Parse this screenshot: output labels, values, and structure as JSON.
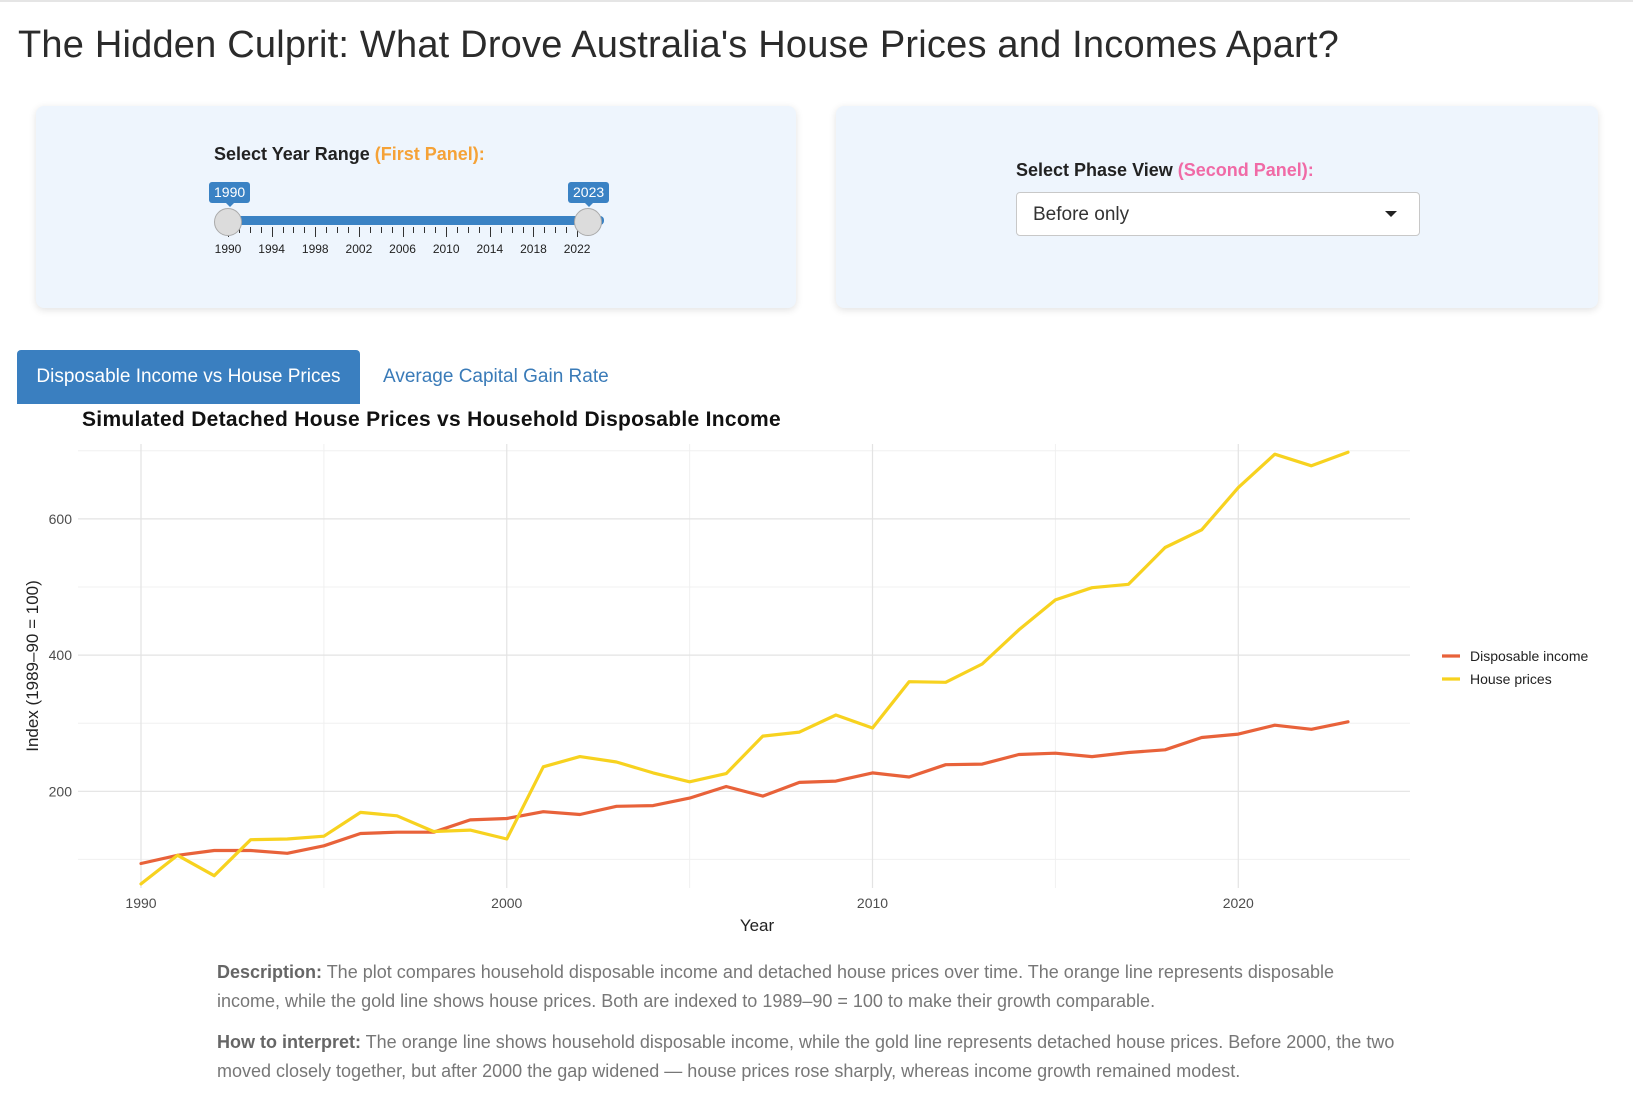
{
  "page": {
    "title": "The Hidden Culprit: What Drove Australia's House Prices and Incomes Apart?"
  },
  "colors": {
    "accent": "#3a82c4",
    "first_panel_accent": "#f5a237",
    "second_panel_accent": "#f06aa6"
  },
  "year_slider": {
    "label": "Select Year Range ",
    "label_accent": "(First Panel):",
    "min": 1990,
    "max": 2023,
    "from_label": "1990",
    "to_label": "2023",
    "tick_labels": [
      "1990",
      "1994",
      "1998",
      "2002",
      "2006",
      "2010",
      "2014",
      "2018",
      "2022"
    ]
  },
  "phase_select": {
    "label": "Select Phase View ",
    "label_accent": "(Second Panel):",
    "value": "Before only"
  },
  "tabs": [
    {
      "label": "Disposable Income vs House Prices",
      "active": true
    },
    {
      "label": "Average Capital Gain Rate",
      "active": false
    }
  ],
  "chart_data": {
    "type": "line",
    "title": "Simulated Detached House Prices vs Household Disposable Income",
    "xlabel": "Year",
    "ylabel": "Index (1989–90 = 100)",
    "xlim": [
      1990,
      2023
    ],
    "ylim": [
      58,
      710
    ],
    "x_ticks": [
      1990,
      2000,
      2010,
      2020
    ],
    "y_ticks": [
      200,
      400,
      600
    ],
    "grid": true,
    "legend_position": "right",
    "x": [
      1990,
      1991,
      1992,
      1993,
      1994,
      1995,
      1996,
      1997,
      1998,
      1999,
      2000,
      2001,
      2002,
      2003,
      2004,
      2005,
      2006,
      2007,
      2008,
      2009,
      2010,
      2011,
      2012,
      2013,
      2014,
      2015,
      2016,
      2017,
      2018,
      2019,
      2020,
      2021,
      2022,
      2023
    ],
    "series": [
      {
        "name": "Disposable income",
        "color": "#e8623a",
        "values": [
          94,
          106,
          113,
          113,
          109,
          120,
          138,
          140,
          140,
          158,
          160,
          170,
          166,
          178,
          179,
          190,
          207,
          193,
          213,
          215,
          227,
          221,
          239,
          240,
          254,
          256,
          251,
          257,
          261,
          279,
          284,
          297,
          291,
          302
        ]
      },
      {
        "name": "House prices",
        "color": "#f7d21f",
        "values": [
          64,
          106,
          76,
          129,
          130,
          134,
          169,
          164,
          141,
          143,
          130,
          236,
          251,
          243,
          227,
          214,
          226,
          281,
          287,
          312,
          293,
          361,
          360,
          387,
          437,
          481,
          499,
          504,
          558,
          584,
          646,
          695,
          678,
          698
        ]
      }
    ]
  },
  "description": {
    "label": "Description:",
    "text": " The plot compares household disposable income and detached house prices over time. The orange line represents disposable income, while the gold line shows house prices. Both are indexed to 1989–90 = 100 to make their growth comparable."
  },
  "interpretation": {
    "label": "How to interpret:",
    "text": " The orange line shows household disposable income, while the gold line represents detached house prices. Before 2000, the two moved closely together, but after 2000 the gap widened — house prices rose sharply, whereas income growth remained modest."
  }
}
